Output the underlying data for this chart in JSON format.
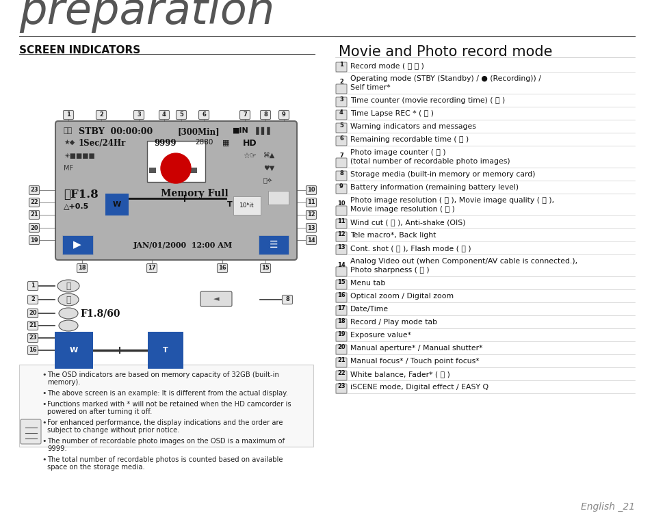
{
  "bg_color": "#ffffff",
  "title": "preparation",
  "section1": "SCREEN INDICATORS",
  "section2": "Movie and Photo record mode",
  "footer": "English _21",
  "right_items": [
    [
      "1",
      "Record mode ( ⎘ ⎙ )"
    ],
    [
      "2",
      "Operating mode (STBY (Standby) / ● (Recording)) /\nSelf timer*"
    ],
    [
      "3",
      "Time counter (movie recording time) ( ⎘ )"
    ],
    [
      "4",
      "Time Lapse REC * ( ⎘ )"
    ],
    [
      "5",
      "Warning indicators and messages"
    ],
    [
      "6",
      "Remaining recordable time ( ⎘ )"
    ],
    [
      "7",
      "Photo image counter ( ⎙ )\n(total number of recordable photo images)"
    ],
    [
      "8",
      "Storage media (built-in memory or memory card)"
    ],
    [
      "9",
      "Battery information (remaining battery level)"
    ],
    [
      "10",
      "Photo image resolution ( ⎙ ), Movie image quality ( ⎘ ),\nMovie image resolution ( ⎘ )"
    ],
    [
      "11",
      "Wind cut ( ⎘ ), Anti-shake (OIS)"
    ],
    [
      "12",
      "Tele macro*, Back light"
    ],
    [
      "13",
      "Cont. shot ( ⎙ ), Flash mode ( ⎙ )"
    ],
    [
      "14",
      "Analog Video out (when Component/AV cable is connected.),\nPhoto sharpness ( ⎙ )"
    ],
    [
      "15",
      "Menu tab"
    ],
    [
      "16",
      "Optical zoom / Digital zoom"
    ],
    [
      "17",
      "Date/Time"
    ],
    [
      "18",
      "Record / Play mode tab"
    ],
    [
      "19",
      "Exposure value*"
    ],
    [
      "20",
      "Manual aperture* / Manual shutter*"
    ],
    [
      "21",
      "Manual focus* / Touch point focus*"
    ],
    [
      "22",
      "White balance, Fader* ( ⎘ )"
    ],
    [
      "23",
      "iSCENE mode, Digital effect / EASY Q"
    ]
  ],
  "note_bullets": [
    "The OSD indicators are based on memory capacity of 32GB (built-in\nmemory).",
    "The above screen is an example: It is different from the actual display.",
    "Functions marked with * will not be retained when the HD camcorder is\npowered on after turning it off.",
    "For enhanced performance, the display indications and the order are\nsubject to change without prior notice.",
    "The number of recordable photo images on the OSD is a maximum of\n9999.",
    "The total number of recordable photos is counted based on available\nspace on the storage media."
  ],
  "screen_color": "#b0b0b0",
  "screen_dark": "#888888",
  "blue_bar": "#2255aa",
  "blue_btn": "#2255aa",
  "easy_q_color": "#2255aa",
  "callout_box_color": "#e0e0e0",
  "callout_box_edge": "#888888"
}
